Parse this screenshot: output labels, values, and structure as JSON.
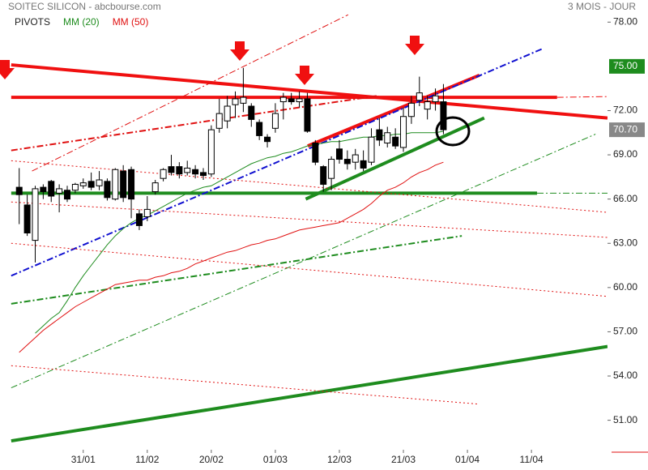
{
  "chart_data": {
    "type": "candlestick",
    "title": "SOITEC SILICON - abcbourse.com",
    "subtitle": "3 MOIS - JOUR",
    "legend": [
      {
        "name": "PIVOTS",
        "color": "#222222"
      },
      {
        "name": "MM (20)",
        "color": "#1e8c1e"
      },
      {
        "name": "MM (50)",
        "color": "#e01010"
      }
    ],
    "categories": [
      null,
      null,
      null,
      null,
      null,
      null,
      null,
      null,
      "31/01",
      null,
      null,
      null,
      null,
      null,
      null,
      null,
      "11/02",
      null,
      null,
      null,
      null,
      null,
      null,
      null,
      "20/02",
      null,
      null,
      null,
      null,
      null,
      null,
      null,
      "01/03",
      null,
      null,
      null,
      null,
      null,
      null,
      null,
      "12/03",
      null,
      null,
      null,
      null,
      null,
      null,
      null,
      "21/03",
      null,
      null,
      null,
      null,
      null,
      null,
      null,
      "01/04",
      null,
      null,
      null,
      null,
      null,
      null,
      null,
      "11/04",
      null,
      null,
      null,
      null,
      null,
      null,
      null,
      null,
      null
    ],
    "open": [
      66.8,
      65.6,
      63.2,
      66.8,
      67.2,
      66.4,
      66.6,
      66.6,
      66.9,
      67.2,
      66.9,
      67.2,
      66.0,
      67.9,
      68.0,
      65.0,
      64.8,
      66.5,
      67.4,
      68.2,
      68.2,
      67.8,
      68.0,
      67.8,
      67.7,
      70.8,
      71.3,
      72.4,
      72.5,
      72.3,
      71.2,
      70.2,
      70.8,
      72.6,
      72.8,
      72.6,
      72.8,
      69.8,
      68.2,
      67.4,
      69.4,
      68.7,
      68.5,
      68.6,
      68.5,
      70.7,
      69.8,
      70.2,
      69.5,
      71.6,
      72.7,
      72.1,
      72.6,
      72.6,
      null,
      null,
      null,
      null,
      null,
      null,
      null,
      null,
      null,
      null,
      null,
      null,
      null,
      null,
      null,
      null,
      null,
      null,
      null,
      null
    ],
    "high": [
      68.1,
      66.3,
      66.9,
      67.0,
      67.3,
      67.0,
      66.9,
      67.1,
      67.4,
      67.8,
      67.9,
      67.4,
      68.1,
      68.3,
      68.2,
      65.3,
      66.2,
      67.3,
      68.1,
      69.0,
      68.5,
      68.6,
      68.3,
      68.1,
      71.0,
      72.8,
      73.0,
      73.3,
      74.9,
      72.5,
      71.4,
      70.4,
      72.5,
      73.2,
      73.2,
      73.3,
      73.2,
      70.0,
      68.3,
      68.9,
      70.0,
      69.3,
      69.4,
      69.3,
      70.8,
      71.5,
      70.9,
      70.8,
      72.2,
      73.0,
      74.3,
      73.0,
      73.5,
      73.8,
      null,
      null,
      null,
      null,
      null,
      null,
      null,
      null,
      null,
      null,
      null,
      null,
      null,
      null,
      null,
      null,
      null,
      null,
      null,
      null
    ],
    "low": [
      64.3,
      63.5,
      61.7,
      66.0,
      65.8,
      65.1,
      65.8,
      66.4,
      66.7,
      66.6,
      66.6,
      65.9,
      65.9,
      65.8,
      64.7,
      63.9,
      64.5,
      66.3,
      67.2,
      67.6,
      67.4,
      67.6,
      67.4,
      67.3,
      67.5,
      70.5,
      70.8,
      71.5,
      71.9,
      70.9,
      70.0,
      69.5,
      70.5,
      71.4,
      72.4,
      72.2,
      70.5,
      68.3,
      66.5,
      66.6,
      68.4,
      68.0,
      68.0,
      67.9,
      68.3,
      69.6,
      69.5,
      69.4,
      69.2,
      71.1,
      72.3,
      71.4,
      72.0,
      70.4,
      null,
      null,
      null,
      null,
      null,
      null,
      null,
      null,
      null,
      null,
      null,
      null,
      null,
      null,
      null,
      null,
      null,
      null,
      null,
      null
    ],
    "close": [
      66.3,
      63.7,
      66.7,
      66.5,
      66.2,
      66.7,
      66.0,
      67.0,
      67.1,
      66.8,
      67.3,
      66.1,
      68.0,
      66.1,
      66.0,
      64.2,
      65.3,
      67.1,
      68.0,
      67.8,
      67.7,
      68.1,
      67.7,
      67.6,
      70.7,
      71.8,
      72.3,
      72.8,
      72.9,
      71.4,
      70.3,
      69.9,
      71.8,
      72.9,
      72.6,
      72.8,
      70.6,
      68.5,
      67.0,
      68.7,
      68.7,
      68.4,
      69.0,
      68.1,
      70.2,
      70.0,
      70.5,
      69.6,
      71.6,
      72.5,
      73.2,
      72.6,
      73.0,
      70.7,
      null,
      null,
      null,
      null,
      null,
      null,
      null,
      null,
      null,
      null,
      null,
      null,
      null,
      null,
      null,
      null,
      null,
      null,
      null,
      null
    ],
    "up_color": "#ffffff",
    "down_color": "#000000",
    "series": [
      {
        "name": "MM (20)",
        "color": "#1e8c1e",
        "values": [
          null,
          null,
          56.9,
          57.4,
          57.9,
          58.3,
          59.1,
          60.0,
          60.8,
          61.5,
          62.2,
          62.9,
          63.5,
          64.0,
          64.4,
          64.7,
          64.9,
          65.2,
          65.5,
          65.8,
          66.1,
          66.4,
          66.6,
          66.8,
          66.9,
          67.2,
          67.5,
          67.8,
          68.1,
          68.4,
          68.6,
          68.8,
          68.9,
          69.1,
          69.2,
          69.4,
          69.6,
          69.7,
          69.8,
          69.9,
          69.9,
          70.0,
          70.1,
          70.2,
          70.2,
          70.3,
          70.3,
          70.4,
          70.4,
          70.5,
          70.5,
          70.5,
          70.5,
          70.6,
          null,
          null,
          null,
          null,
          null,
          null,
          null,
          null,
          null,
          null,
          null,
          null,
          null,
          null,
          null,
          null,
          null,
          null,
          null,
          null
        ]
      },
      {
        "name": "MM (50)",
        "color": "#e01010",
        "values": [
          55.6,
          56.1,
          56.6,
          57.1,
          57.5,
          57.9,
          58.3,
          58.7,
          59.0,
          59.3,
          59.6,
          59.9,
          60.2,
          60.3,
          60.4,
          60.5,
          60.5,
          60.7,
          60.8,
          61.0,
          61.1,
          61.3,
          61.6,
          61.8,
          62.0,
          62.2,
          62.4,
          62.5,
          62.7,
          62.9,
          63.0,
          63.2,
          63.3,
          63.5,
          63.7,
          63.9,
          64.0,
          64.1,
          64.2,
          64.3,
          64.4,
          64.7,
          65.0,
          65.3,
          65.7,
          66.2,
          66.6,
          66.8,
          67.1,
          67.5,
          67.8,
          68.0,
          68.3,
          68.5,
          null,
          null,
          null,
          null,
          null,
          null,
          null,
          null,
          null,
          null,
          null,
          null,
          null,
          null,
          null,
          null,
          null,
          null,
          null,
          null
        ]
      }
    ],
    "trendlines": [
      {
        "x": [
          -1.0,
          73.5
        ],
        "y": [
          75.1,
          71.5
        ],
        "color": "#f01010",
        "width": 4,
        "style": "solid"
      },
      {
        "x": [
          -1.0,
          67.2
        ],
        "y": [
          72.9,
          72.9
        ],
        "color": "#f01010",
        "width": 4,
        "style": "solid"
      },
      {
        "x": [
          67.2,
          73.5
        ],
        "y": [
          72.9,
          72.95
        ],
        "color": "#f01010",
        "width": 1,
        "style": "dashdot"
      },
      {
        "x": [
          36.05,
          57.5
        ],
        "y": [
          69.6,
          74.4
        ],
        "color": "#f01010",
        "width": 4,
        "style": "solid"
      },
      {
        "x": [
          -1.0,
          64.7
        ],
        "y": [
          66.4,
          66.4
        ],
        "color": "#1e8c1e",
        "width": 4,
        "style": "solid"
      },
      {
        "x": [
          64.7,
          73.5
        ],
        "y": [
          66.4,
          66.4
        ],
        "color": "#1e8c1e",
        "width": 1,
        "style": "dashdot"
      },
      {
        "x": [
          35.8,
          58.1
        ],
        "y": [
          66.0,
          71.5
        ],
        "color": "#1e8c1e",
        "width": 4,
        "style": "solid"
      },
      {
        "x": [
          -1.0,
          73.5
        ],
        "y": [
          49.6,
          56.0
        ],
        "color": "#1e8c1e",
        "width": 4,
        "style": "solid"
      },
      {
        "x": [
          -1.0,
          65.4
        ],
        "y": [
          60.8,
          76.2
        ],
        "color": "#1010d0",
        "width": 2,
        "style": "dashdot"
      },
      {
        "x": [
          -1.0,
          44.7
        ],
        "y": [
          69.3,
          73.0
        ],
        "color": "#e01010",
        "width": 2,
        "style": "dashdot"
      },
      {
        "x": [
          1.6,
          41.1
        ],
        "y": [
          67.9,
          78.5
        ],
        "color": "#e01010",
        "width": 1,
        "style": "dashdot"
      },
      {
        "x": [
          -1.0,
          72.0
        ],
        "y": [
          53.2,
          70.4
        ],
        "color": "#1e8c1e",
        "width": 1,
        "style": "dashdot"
      },
      {
        "x": [
          -1.0,
          55.3
        ],
        "y": [
          58.9,
          63.5
        ],
        "color": "#1e8c1e",
        "width": 2,
        "style": "dashdot"
      },
      {
        "x": [
          -1.0,
          73.5
        ],
        "y": [
          68.6,
          65.1
        ],
        "color": "#e01010",
        "width": 1,
        "style": "dotted"
      },
      {
        "x": [
          -1.0,
          73.5
        ],
        "y": [
          65.8,
          63.4
        ],
        "color": "#e01010",
        "width": 1,
        "style": "dotted"
      },
      {
        "x": [
          -1.0,
          73.5
        ],
        "y": [
          63.0,
          59.4
        ],
        "color": "#e01010",
        "width": 1,
        "style": "dotted"
      },
      {
        "x": [
          -1.0,
          57.3
        ],
        "y": [
          54.7,
          52.1
        ],
        "color": "#e01010",
        "width": 1,
        "style": "dotted"
      }
    ],
    "xlim": [
      -2.4,
      73.5
    ],
    "ylim": [
      49.0,
      79.5
    ],
    "yticks": [
      {
        "value": 78,
        "label": "78.00"
      },
      {
        "value": 72,
        "label": "72.00"
      },
      {
        "value": 69,
        "label": "69.00"
      },
      {
        "value": 66,
        "label": "66.00"
      },
      {
        "value": 63,
        "label": "63.00"
      },
      {
        "value": 60,
        "label": "60.00"
      },
      {
        "value": 57,
        "label": "57.00"
      },
      {
        "value": 54,
        "label": "54.00"
      },
      {
        "value": 51,
        "label": "51.00"
      }
    ],
    "pivot": {
      "value": 75,
      "label": "75.00",
      "color": "#1e8c1e"
    },
    "last": {
      "value": 70.7,
      "label": "70.70",
      "color": "#888888"
    }
  }
}
